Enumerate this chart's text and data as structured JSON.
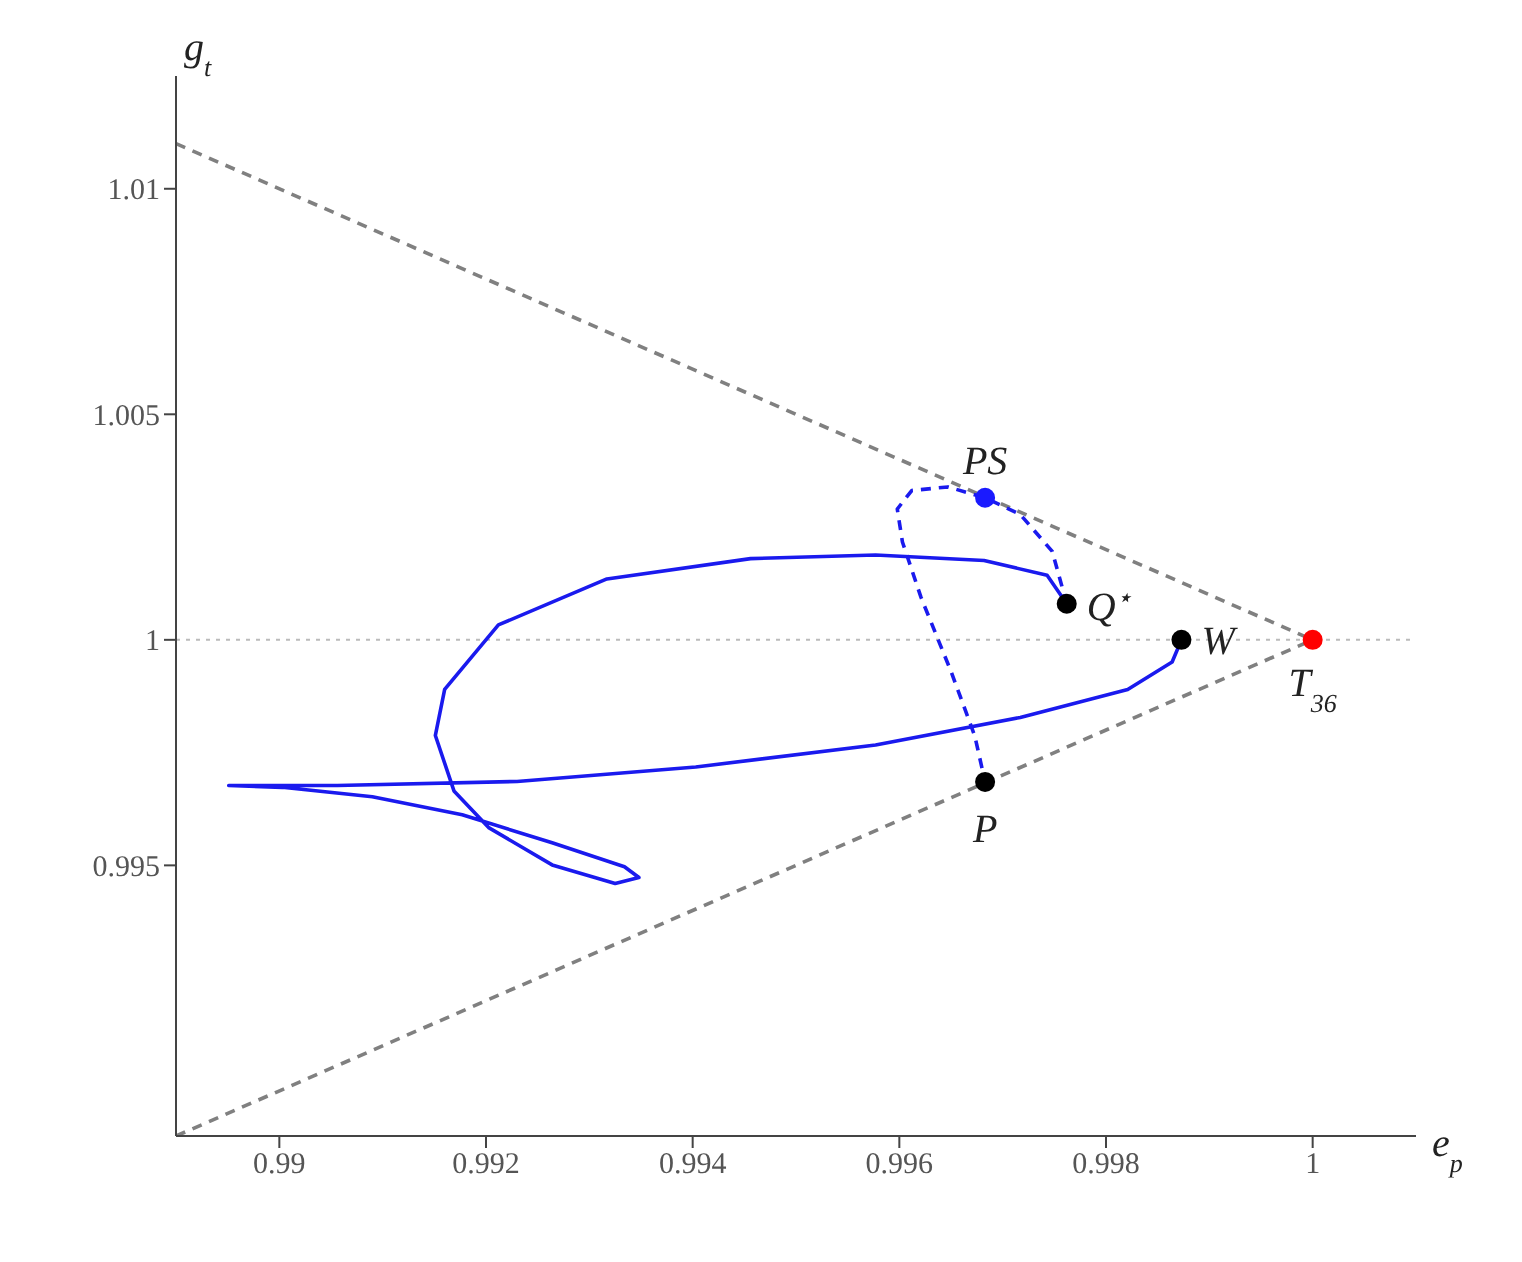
{
  "chart_data": {
    "type": "line",
    "xlabel": "e$_{p}$",
    "ylabel": "g$_{t}$",
    "xlim": [
      0.989,
      1.001
    ],
    "xticks": [
      0.99,
      0.992,
      0.994,
      0.996,
      0.998,
      1
    ],
    "ylim": [
      0.989,
      1.0125
    ],
    "yticks": [
      0.995,
      1,
      1.005,
      1.01
    ],
    "ref_lines": [
      {
        "axis": "y",
        "value": 1,
        "color": "#bbbbbb",
        "line_style": "dotted"
      }
    ],
    "series": [
      {
        "color": "#808080",
        "line_style": "dashed",
        "x": [
          0.989,
          1
        ],
        "values": [
          1.011,
          1
        ]
      },
      {
        "color": "#808080",
        "line_style": "dashed",
        "x": [
          0.989,
          1
        ],
        "values": [
          0.989,
          1
        ]
      },
      {
        "color": "#1a1aee",
        "line_style": "solid",
        "x": [
          0.99762,
          0.99743,
          0.99682,
          0.99577,
          0.99456,
          0.99317,
          0.99212,
          0.9916,
          0.99151,
          0.99169,
          0.99203,
          0.99264,
          0.99325,
          0.99348,
          0.99334,
          0.99264,
          0.99177,
          0.9909,
          0.99003,
          0.98951,
          0.99056,
          0.9923,
          0.99403,
          0.99577,
          0.99717,
          0.99821,
          0.99864,
          0.99873
        ],
        "values": [
          1.0008,
          1.00143,
          1.00176,
          1.00188,
          1.0018,
          1.00135,
          1.00033,
          0.9989,
          0.99788,
          0.99665,
          0.99583,
          0.99501,
          0.9946,
          0.99473,
          0.99497,
          0.9955,
          0.99612,
          0.99652,
          0.99673,
          0.99677,
          0.99677,
          0.99686,
          0.99718,
          0.99767,
          0.99828,
          0.9989,
          0.99951,
          1
        ]
      },
      {
        "color": "#1a1aee",
        "line_style": "dashed",
        "x": [
          0.99762,
          0.99748,
          0.99717,
          0.99683,
          0.99647,
          0.99612,
          0.99598,
          0.99603,
          0.99621,
          0.9965,
          0.99673,
          0.99683
        ],
        "values": [
          1.0008,
          1.00196,
          1.00278,
          1.00315,
          1.00339,
          1.00331,
          1.0029,
          1.00217,
          1.00094,
          0.9993,
          0.99787,
          0.99685
        ]
      },
      {
        "type": "scatter",
        "marker": "circle",
        "x": [
          0.99683,
          0.99762,
          0.99873,
          1,
          0.99683
        ],
        "values": [
          1.00315,
          1.0008,
          1,
          1,
          0.99685
        ],
        "colors": [
          "#1a1aff",
          "#000000",
          "#000000",
          "#ff0000",
          "#000000"
        ]
      }
    ],
    "annotations": [
      {
        "text": "PS",
        "x": 0.99683,
        "y": 1.00315
      },
      {
        "text": "Q$^{⋆}$",
        "x": 0.99762,
        "y": 1.0008
      },
      {
        "text": "W",
        "x": 0.99873,
        "y": 1
      },
      {
        "text": "T$_{36}$",
        "x": 1,
        "y": 1
      },
      {
        "text": "P",
        "x": 0.99683,
        "y": 0.99685
      }
    ]
  }
}
